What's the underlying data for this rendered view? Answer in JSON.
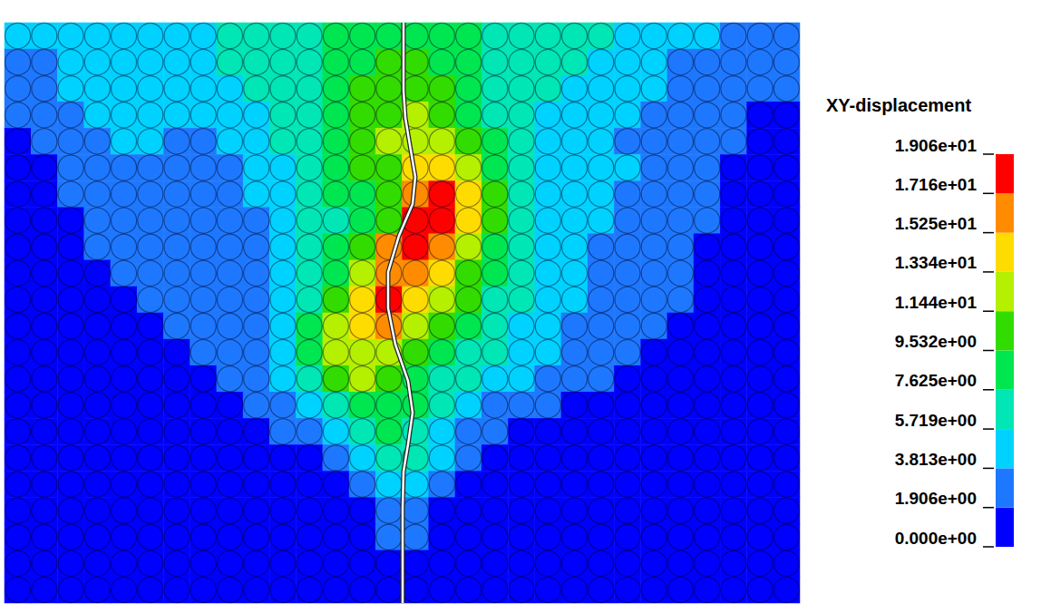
{
  "chart_data": {
    "type": "heatmap",
    "tick_labels": false,
    "cells": [
      [
        4.5,
        5,
        5.5,
        5,
        5.5,
        5.5,
        5,
        5.5,
        6,
        6,
        6.5,
        7,
        8,
        9,
        9.5,
        9.5,
        9,
        8,
        7,
        6.5,
        6.5,
        6,
        6,
        5,
        4.5,
        4,
        4,
        3.5,
        3,
        3
      ],
      [
        3,
        3.5,
        4.5,
        5,
        5,
        5,
        5,
        5.5,
        6,
        6,
        6.5,
        7,
        8,
        9.5,
        10,
        10,
        9.5,
        8,
        7,
        6.5,
        6,
        6,
        5.5,
        5,
        4,
        3.5,
        3,
        3,
        2.5,
        2.5
      ],
      [
        2.5,
        3,
        4,
        4.5,
        4.5,
        4.5,
        4.5,
        5,
        5.5,
        6,
        6.5,
        7,
        8.5,
        10,
        10.5,
        10.5,
        10,
        8.5,
        7,
        6.5,
        6,
        5.5,
        5,
        4.5,
        4,
        3,
        2.5,
        2.5,
        2,
        2
      ],
      [
        2,
        2.5,
        3,
        4,
        4,
        4.5,
        4,
        4.5,
        5,
        5.5,
        6,
        7,
        8.5,
        10.5,
        11,
        11.5,
        11,
        9,
        7.5,
        6.5,
        5.5,
        5,
        4.5,
        4,
        3.5,
        3,
        2.5,
        2,
        1.5,
        1.5
      ],
      [
        1.5,
        2,
        2.5,
        3.5,
        4,
        4,
        3.5,
        3.5,
        4,
        5,
        6,
        7,
        8.5,
        10.5,
        12,
        13,
        12.5,
        10,
        8,
        6.5,
        5.5,
        5,
        4.5,
        3.5,
        3,
        3,
        2.5,
        2,
        1.5,
        1
      ],
      [
        1.5,
        1.5,
        2,
        3,
        3.5,
        3.5,
        3,
        3,
        3.5,
        4.5,
        5.5,
        7,
        8.5,
        10,
        11,
        14,
        14,
        11.5,
        9,
        7,
        5.5,
        5,
        4.5,
        4,
        3,
        2.5,
        2,
        1.5,
        1,
        1
      ],
      [
        1.5,
        1.5,
        2,
        2.5,
        3,
        3,
        2.5,
        2.5,
        3,
        4,
        5,
        6.5,
        8,
        9.5,
        10.5,
        16,
        17.5,
        14,
        10,
        7,
        5.5,
        4.5,
        4,
        3.5,
        3,
        2.5,
        2,
        1.5,
        1,
        1
      ],
      [
        1,
        1.5,
        1.5,
        2,
        2.5,
        2.5,
        2.5,
        2.5,
        3,
        3.5,
        4.5,
        6,
        7.5,
        9,
        10,
        17.5,
        18,
        15,
        11,
        7.5,
        5.5,
        4.5,
        4,
        3.5,
        3,
        2.5,
        2,
        1.5,
        1,
        1
      ],
      [
        1,
        1,
        1.5,
        2,
        2,
        2.5,
        2.5,
        2.5,
        3,
        3.5,
        4.5,
        6,
        8,
        11,
        17,
        18.5,
        16.5,
        13,
        9.5,
        7,
        5.5,
        4.5,
        3.5,
        3,
        2.5,
        2,
        1.5,
        1.5,
        1,
        1
      ],
      [
        1,
        1,
        1.5,
        1.5,
        2,
        2,
        2.5,
        2.5,
        3,
        3.5,
        4.5,
        6,
        9,
        12.5,
        17,
        16,
        14,
        11,
        8.5,
        6.5,
        5,
        4,
        3.5,
        3,
        2.5,
        2,
        1.5,
        1,
        1,
        1
      ],
      [
        1,
        1,
        1,
        1.5,
        1.5,
        2,
        2,
        2.5,
        3,
        3.5,
        5,
        7,
        11,
        13.5,
        17.5,
        15,
        12.5,
        10,
        7.5,
        6,
        5,
        4,
        3.5,
        3,
        2.5,
        2,
        1.5,
        1,
        1,
        0.5
      ],
      [
        0.5,
        1,
        1,
        1,
        1.5,
        1.5,
        2,
        2,
        2.5,
        3.5,
        5,
        8,
        12.5,
        14,
        15.5,
        12,
        10,
        8,
        6.5,
        5.5,
        4.5,
        3.5,
        3,
        2.5,
        2,
        1.5,
        1,
        1,
        0.5,
        0.5
      ],
      [
        0.5,
        0.5,
        1,
        1,
        1,
        1.5,
        1.5,
        2,
        2.5,
        3.5,
        5,
        8,
        12,
        13,
        12.5,
        10,
        8.5,
        7,
        6,
        5,
        4,
        3,
        2.5,
        2,
        1.5,
        1,
        1,
        0.5,
        0.5,
        0.5
      ],
      [
        0.5,
        0.5,
        0.5,
        1,
        1,
        1,
        1,
        1.5,
        2,
        3,
        4.5,
        7,
        10,
        11.5,
        11,
        9,
        7.5,
        6,
        5,
        4,
        3,
        2.5,
        2,
        1.5,
        1,
        1,
        0.5,
        0.5,
        0.5,
        0.5
      ],
      [
        0.5,
        0.5,
        0.5,
        0.5,
        1,
        1,
        1,
        1,
        1.5,
        2,
        3,
        5,
        7,
        9,
        9.5,
        8.5,
        6.5,
        5,
        3.5,
        2.5,
        2,
        1.5,
        1,
        1,
        0.5,
        0.5,
        0.5,
        0.5,
        0.5,
        0.5
      ],
      [
        0.5,
        0.5,
        0.5,
        0.5,
        0.5,
        0.5,
        0.5,
        1,
        1,
        1.5,
        2,
        3,
        5,
        7,
        8,
        7,
        5,
        3.5,
        2,
        1.5,
        1,
        1,
        0.5,
        0.5,
        0.5,
        0.5,
        0.5,
        0.5,
        0.5,
        0.5
      ],
      [
        0.5,
        0.5,
        0.5,
        0.5,
        0.5,
        0.5,
        0.5,
        0.5,
        0.5,
        1,
        1,
        1.5,
        3,
        5,
        6,
        6,
        4,
        2,
        1,
        1,
        0.5,
        0.5,
        0.5,
        0.5,
        0.5,
        0.5,
        0.5,
        0.5,
        0.5,
        0.5
      ],
      [
        0.5,
        0.5,
        0.5,
        0.5,
        0.5,
        0.5,
        0.5,
        0.5,
        0.5,
        0.5,
        0.5,
        0.5,
        0.5,
        3,
        4.5,
        4.5,
        2.5,
        1,
        0.5,
        0.5,
        0.5,
        0.5,
        0.5,
        0.5,
        0.5,
        0.5,
        0.5,
        0.5,
        0.5,
        0.5
      ],
      [
        0.5,
        0.5,
        0.5,
        0.5,
        0.5,
        0.5,
        0.5,
        0.5,
        0.5,
        0.5,
        0.5,
        0.5,
        0.5,
        1.5,
        3.5,
        3,
        1.5,
        0.5,
        0.5,
        0.5,
        0.5,
        0.5,
        0.5,
        0.5,
        0.5,
        0.5,
        0.5,
        0.5,
        0.5,
        0.5
      ],
      [
        0.5,
        0.5,
        0.5,
        0.5,
        0.5,
        0.5,
        0.5,
        0.5,
        0.5,
        0.5,
        0.5,
        0.5,
        0.5,
        0.5,
        2,
        2,
        0.5,
        0.5,
        0.5,
        0.5,
        0.5,
        0.5,
        0.5,
        0.5,
        0.5,
        0.5,
        0.5,
        0.5,
        0.5,
        0.5
      ],
      [
        0.5,
        0.5,
        0.5,
        0.5,
        0.5,
        0.5,
        0.5,
        0.5,
        0.5,
        0.5,
        0.5,
        0.5,
        0.5,
        0.5,
        1,
        1,
        0.5,
        0.5,
        0.5,
        0.5,
        0.5,
        0.5,
        0.5,
        0.5,
        0.5,
        0.5,
        0.5,
        0.5,
        0.5,
        0.5
      ],
      [
        0.5,
        0.5,
        0.5,
        0.5,
        0.5,
        0.5,
        0.5,
        0.5,
        0.5,
        0.5,
        0.5,
        0.5,
        0.5,
        0.5,
        0.5,
        0.5,
        0.5,
        0.5,
        0.5,
        0.5,
        0.5,
        0.5,
        0.5,
        0.5,
        0.5,
        0.5,
        0.5,
        0.5,
        0.5,
        0.5
      ]
    ],
    "colorbar": {
      "label": "XY-displacement",
      "range": [
        0,
        19.06
      ],
      "ticks": [
        {
          "value": 0,
          "label": "0.000e+00"
        },
        {
          "value": 1.906,
          "label": "1.906e+00"
        },
        {
          "value": 3.813,
          "label": "3.813e+00"
        },
        {
          "value": 5.719,
          "label": "5.719e+00"
        },
        {
          "value": 7.625,
          "label": "7.625e+00"
        },
        {
          "value": 9.532,
          "label": "9.532e+00"
        },
        {
          "value": 11.44,
          "label": "1.144e+01"
        },
        {
          "value": 13.34,
          "label": "1.334e+01"
        },
        {
          "value": 15.25,
          "label": "1.525e+01"
        },
        {
          "value": 17.16,
          "label": "1.716e+01"
        },
        {
          "value": 19.06,
          "label": "1.906e+01"
        }
      ],
      "colors": [
        "#0000ff",
        "#1e78ff",
        "#00d2ff",
        "#00e6b4",
        "#00e650",
        "#32dc00",
        "#b4f000",
        "#ffdc00",
        "#ff8c00",
        "#ff0000"
      ]
    }
  }
}
